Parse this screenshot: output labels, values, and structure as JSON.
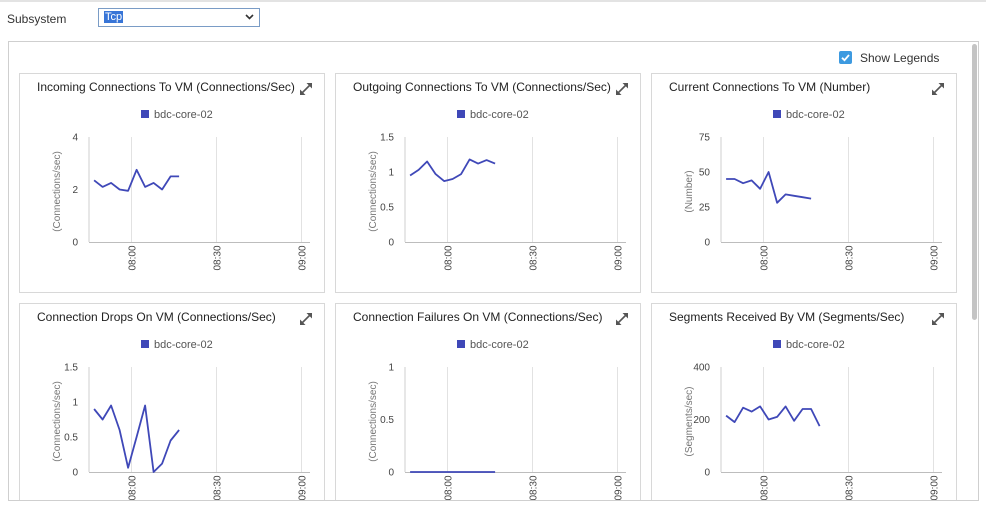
{
  "subsystem": {
    "label": "Subsystem",
    "selected": "Tcp"
  },
  "show_legends": {
    "label": "Show Legends",
    "checked": true
  },
  "series_color": "#3f48b8",
  "chart_data": [
    {
      "type": "line",
      "title": "Incoming Connections To VM (Connections/Sec)",
      "ylabel": "(Connections/sec)",
      "legend": "bdc-core-02",
      "yticks": [
        0,
        2,
        4
      ],
      "ylim": [
        0,
        4
      ],
      "xticks": [
        "08:00",
        "08:30",
        "09:00"
      ],
      "xlim": [
        7.75,
        9.05
      ],
      "series": [
        {
          "name": "bdc-core-02",
          "x": [
            7.78,
            7.83,
            7.88,
            7.93,
            7.98,
            8.03,
            8.08,
            8.13,
            8.18,
            8.23,
            8.28,
            8.33,
            8.38
          ],
          "y": [
            2.35,
            2.1,
            2.25,
            2.0,
            1.95,
            2.75,
            2.1,
            2.25,
            2.0,
            2.5,
            2.5,
            null,
            null
          ]
        }
      ]
    },
    {
      "type": "line",
      "title": "Outgoing Connections To VM (Connections/Sec)",
      "ylabel": "(Connections/sec)",
      "legend": "bdc-core-02",
      "yticks": [
        0,
        0.5,
        1,
        1.5
      ],
      "ylim": [
        0,
        1.5
      ],
      "xticks": [
        "08:00",
        "08:30",
        "09:00"
      ],
      "xlim": [
        7.75,
        9.05
      ],
      "series": [
        {
          "name": "bdc-core-02",
          "x": [
            7.78,
            7.83,
            7.88,
            7.93,
            7.98,
            8.03,
            8.08,
            8.13,
            8.18,
            8.23,
            8.28,
            8.33,
            8.38
          ],
          "y": [
            0.95,
            1.03,
            1.15,
            0.97,
            0.87,
            0.9,
            0.97,
            1.18,
            1.12,
            1.17,
            1.12,
            null,
            null
          ]
        }
      ]
    },
    {
      "type": "line",
      "title": "Current Connections To VM (Number)",
      "ylabel": "(Number)",
      "legend": "bdc-core-02",
      "yticks": [
        0,
        25,
        50,
        75
      ],
      "ylim": [
        0,
        75
      ],
      "xticks": [
        "08:00",
        "08:30",
        "09:00"
      ],
      "xlim": [
        7.75,
        9.05
      ],
      "series": [
        {
          "name": "bdc-core-02",
          "x": [
            7.78,
            7.83,
            7.88,
            7.93,
            7.98,
            8.03,
            8.08,
            8.13,
            8.18,
            8.23,
            8.28,
            8.33,
            8.38
          ],
          "y": [
            45,
            45,
            42,
            44,
            38,
            50,
            28,
            34,
            33,
            32,
            31,
            null,
            null
          ]
        }
      ]
    },
    {
      "type": "line",
      "title": "Connection Drops On VM (Connections/Sec)",
      "ylabel": "(Connections/sec)",
      "legend": "bdc-core-02",
      "yticks": [
        0,
        0.5,
        1,
        1.5
      ],
      "ylim": [
        0,
        1.5
      ],
      "xticks": [
        "08:00",
        "08:30",
        "09:00"
      ],
      "xlim": [
        7.75,
        9.05
      ],
      "series": [
        {
          "name": "bdc-core-02",
          "x": [
            7.78,
            7.83,
            7.88,
            7.93,
            7.98,
            8.03,
            8.08,
            8.13,
            8.18,
            8.23,
            8.28,
            8.33,
            8.38
          ],
          "y": [
            0.9,
            0.75,
            0.95,
            0.6,
            0.06,
            0.5,
            0.95,
            0.0,
            0.12,
            0.45,
            0.6,
            null,
            null
          ]
        }
      ]
    },
    {
      "type": "line",
      "title": "Connection Failures On VM (Connections/Sec)",
      "ylabel": "(Connections/sec)",
      "legend": "bdc-core-02",
      "yticks": [
        0,
        0.5,
        1
      ],
      "ylim": [
        0,
        1
      ],
      "xticks": [
        "08:00",
        "08:30",
        "09:00"
      ],
      "xlim": [
        7.75,
        9.05
      ],
      "series": [
        {
          "name": "bdc-core-02",
          "x": [
            7.78,
            7.83,
            7.88,
            7.93,
            7.98,
            8.03,
            8.08,
            8.13,
            8.18,
            8.23,
            8.28,
            8.33,
            8.38
          ],
          "y": [
            0,
            0,
            0,
            0,
            0,
            0,
            0,
            0,
            0,
            0,
            0,
            null,
            null
          ]
        }
      ]
    },
    {
      "type": "line",
      "title": "Segments Received By VM (Segments/Sec)",
      "ylabel": "(Segments/sec)",
      "legend": "bdc-core-02",
      "yticks": [
        0,
        200,
        400
      ],
      "ylim": [
        0,
        400
      ],
      "xticks": [
        "08:00",
        "08:30",
        "09:00"
      ],
      "xlim": [
        7.75,
        9.05
      ],
      "series": [
        {
          "name": "bdc-core-02",
          "x": [
            7.78,
            7.83,
            7.88,
            7.93,
            7.98,
            8.03,
            8.08,
            8.13,
            8.18,
            8.23,
            8.28,
            8.33,
            8.38
          ],
          "y": [
            215,
            190,
            245,
            230,
            250,
            200,
            210,
            250,
            195,
            240,
            240,
            175,
            null
          ]
        }
      ]
    }
  ]
}
